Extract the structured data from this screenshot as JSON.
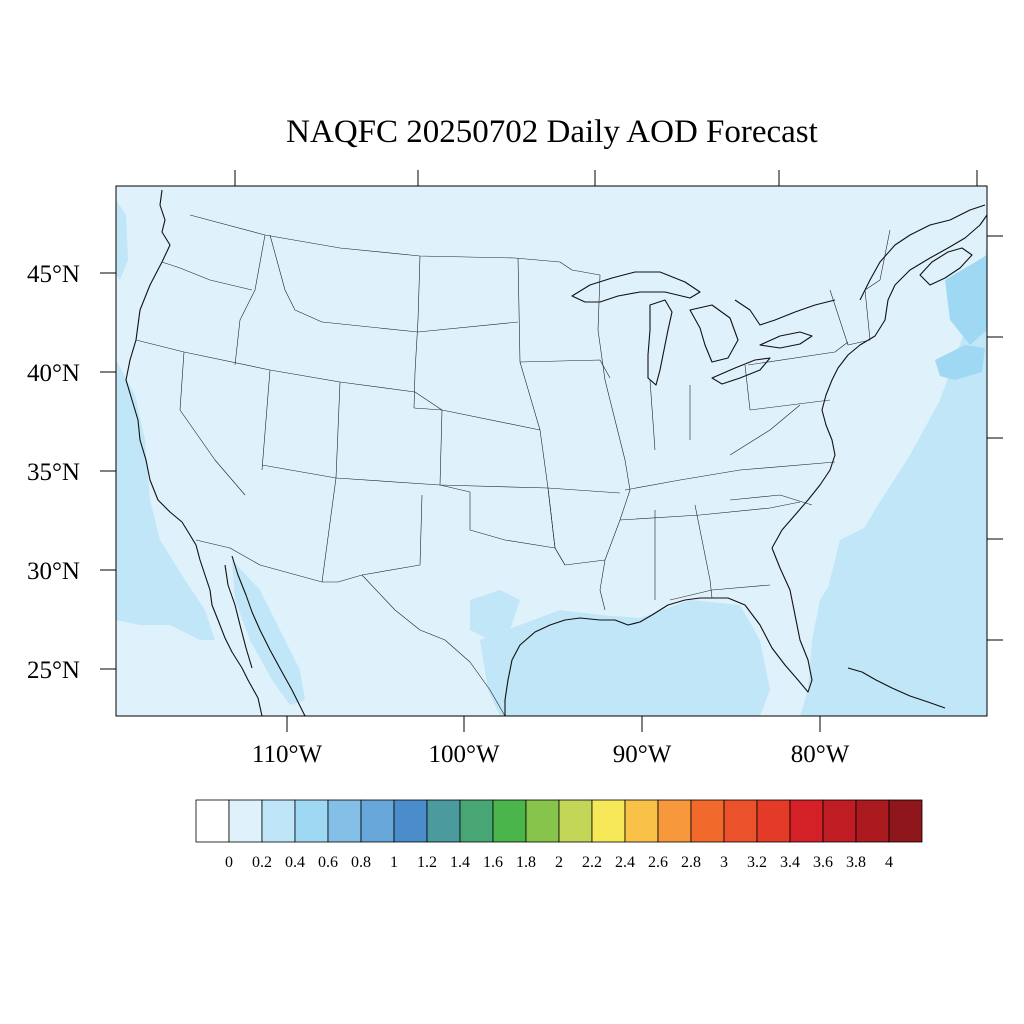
{
  "title": "NAQFC 20250702 Daily AOD Forecast",
  "map": {
    "background_color": "#dff2fb",
    "elevated_color": "#c0e6f8",
    "high_color": "#9fd8f3",
    "lat_labels": [
      "45°N",
      "40°N",
      "35°N",
      "30°N",
      "25°N"
    ],
    "lon_labels": [
      "110°W",
      "100°W",
      "90°W",
      "80°W"
    ]
  },
  "colorbar": {
    "labels": [
      "0",
      "0.2",
      "0.4",
      "0.6",
      "0.8",
      "1",
      "1.2",
      "1.4",
      "1.6",
      "1.8",
      "2",
      "2.2",
      "2.4",
      "2.6",
      "2.8",
      "3",
      "3.2",
      "3.4",
      "3.6",
      "3.8",
      "4"
    ],
    "colors": [
      "#ffffff",
      "#dff2fb",
      "#bfe6f8",
      "#9ed8f3",
      "#83bfe6",
      "#68a7da",
      "#4b8ccb",
      "#4a9a9e",
      "#48a674",
      "#4ab54a",
      "#86c44c",
      "#c4d657",
      "#f7e85a",
      "#f8c248",
      "#f6983b",
      "#f26a2b",
      "#eb512a",
      "#e33b27",
      "#d42127",
      "#c01c24",
      "#aa1a1f",
      "#8f161a"
    ]
  }
}
